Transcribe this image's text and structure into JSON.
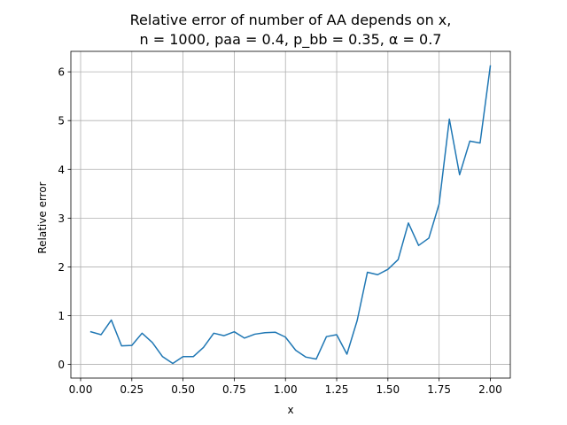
{
  "chart_data": {
    "type": "line",
    "title": "Relative error of number of AA depends on x,",
    "subtitle": "n = 1000, paa = 0.4, p_bb = 0.35, α = 0.7",
    "xlabel": "x",
    "ylabel": "Relative error",
    "xlim": [
      -0.0475,
      2.0975
    ],
    "ylim": [
      -0.28,
      6.42
    ],
    "xticks": [
      "0.00",
      "0.25",
      "0.50",
      "0.75",
      "1.00",
      "1.25",
      "1.50",
      "1.75",
      "2.00"
    ],
    "yticks": [
      "0",
      "1",
      "2",
      "3",
      "4",
      "5",
      "6"
    ],
    "grid": true,
    "line_color": "#1f77b4",
    "x": [
      0.05,
      0.1,
      0.15,
      0.2,
      0.25,
      0.3,
      0.35,
      0.4,
      0.45,
      0.5,
      0.55,
      0.6,
      0.65,
      0.7,
      0.75,
      0.8,
      0.85,
      0.9,
      0.95,
      1.0,
      1.05,
      1.1,
      1.15,
      1.2,
      1.25,
      1.3,
      1.35,
      1.4,
      1.45,
      1.5,
      1.55,
      1.6,
      1.65,
      1.7,
      1.75,
      1.8,
      1.85,
      1.9,
      1.95,
      2.0
    ],
    "y": [
      0.67,
      0.61,
      0.91,
      0.38,
      0.39,
      0.64,
      0.45,
      0.16,
      0.02,
      0.16,
      0.16,
      0.35,
      0.64,
      0.59,
      0.67,
      0.54,
      0.62,
      0.65,
      0.66,
      0.56,
      0.29,
      0.15,
      0.11,
      0.57,
      0.61,
      0.21,
      0.9,
      1.89,
      1.84,
      1.95,
      2.15,
      2.9,
      2.44,
      2.59,
      3.29,
      5.03,
      3.89,
      4.58,
      4.54,
      6.12
    ]
  }
}
